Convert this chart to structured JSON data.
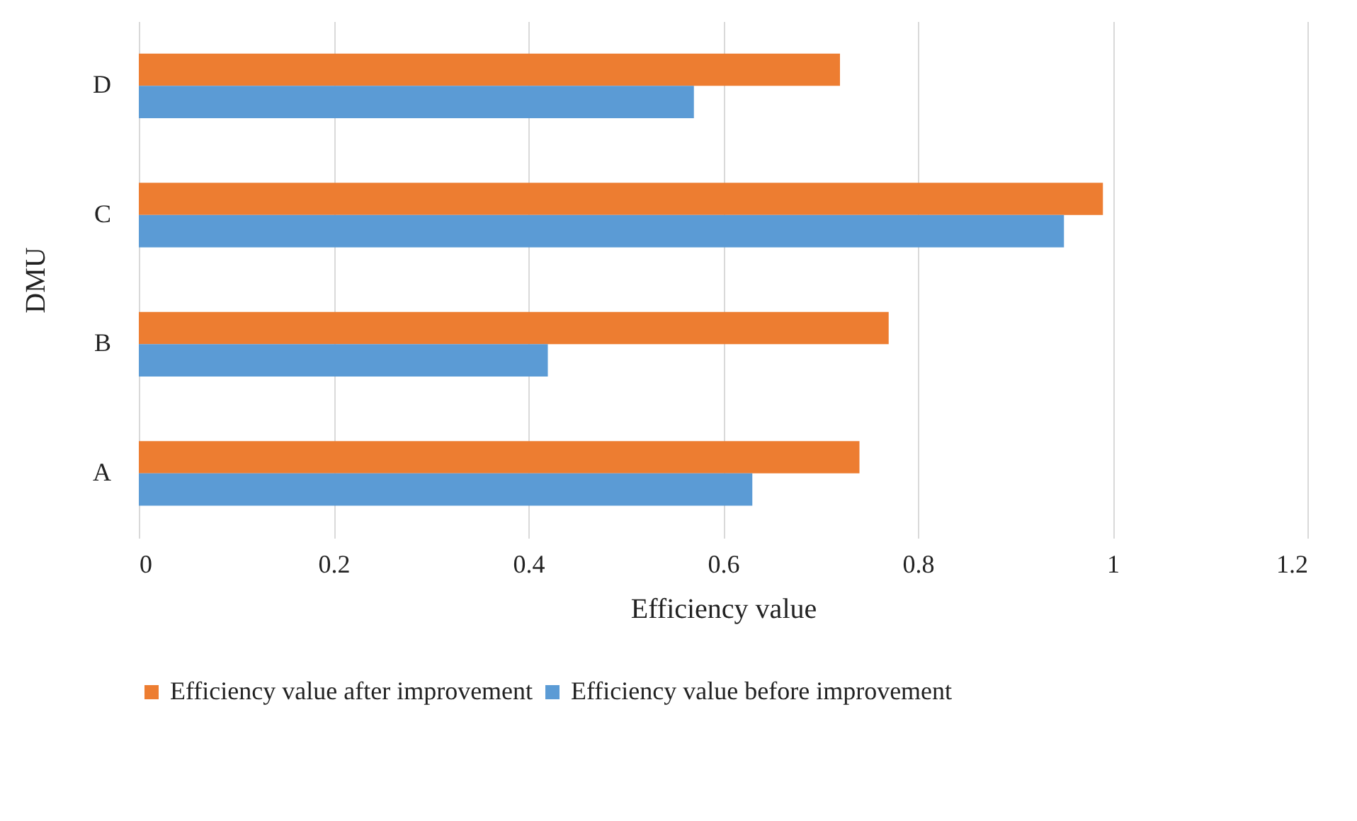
{
  "chart_data": {
    "type": "bar",
    "orientation": "horizontal",
    "xlabel": "Efficiency value",
    "ylabel": "DMU",
    "categories": [
      "D",
      "C",
      "B",
      "A"
    ],
    "series": [
      {
        "name": "Efficiency value after improvement",
        "color": "#ed7d31",
        "values": [
          0.72,
          0.99,
          0.77,
          0.74
        ]
      },
      {
        "name": "Efficiency value before improvement",
        "color": "#5b9bd5",
        "values": [
          0.57,
          0.95,
          0.42,
          0.63
        ]
      }
    ],
    "xlim": [
      0,
      1.2
    ],
    "xticks": [
      0,
      0.2,
      0.4,
      0.6,
      0.8,
      1,
      1.2
    ],
    "grid": "x",
    "legend": "bottom"
  }
}
